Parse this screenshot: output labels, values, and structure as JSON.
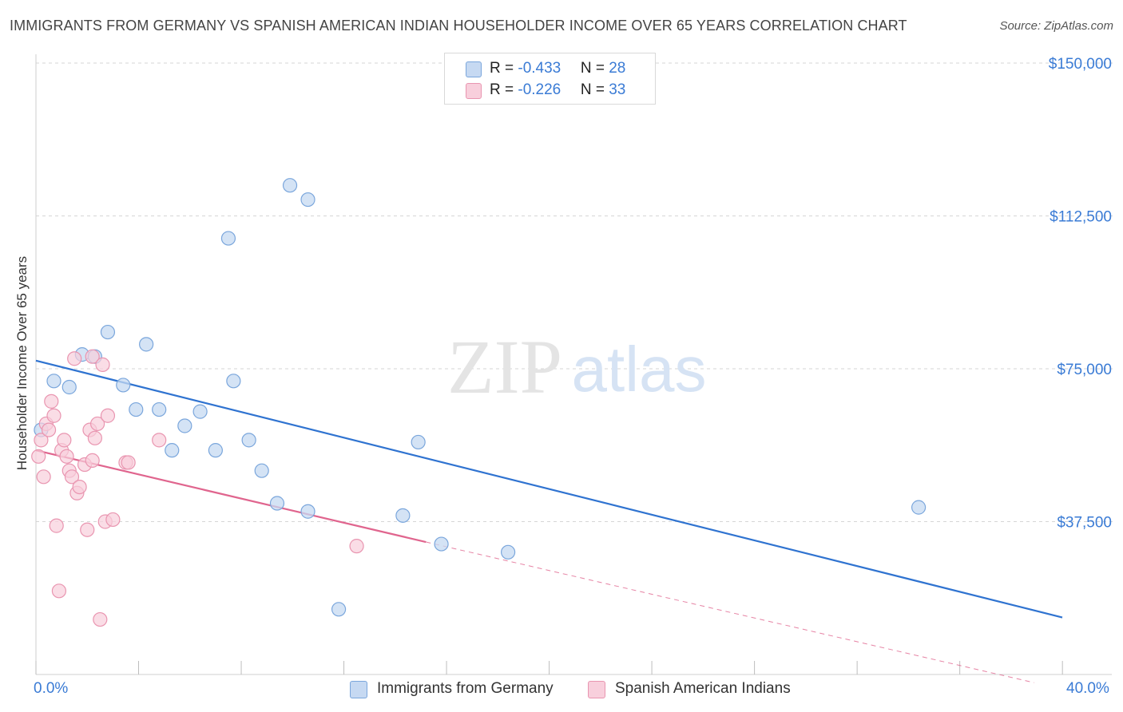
{
  "header": {
    "title": "IMMIGRANTS FROM GERMANY VS SPANISH AMERICAN INDIAN HOUSEHOLDER INCOME OVER 65 YEARS CORRELATION CHART",
    "source": "Source: ZipAtlas.com"
  },
  "watermark": {
    "zip": "ZIP",
    "atlas": "atlas"
  },
  "legend": {
    "rows": [
      {
        "r_label": "R = ",
        "r_value": "-0.433",
        "n_label": "N = ",
        "n_value": "28",
        "color": "#a9c8f0"
      },
      {
        "r_label": "R = ",
        "r_value": "-0.226",
        "n_label": "N = ",
        "n_value": "33",
        "color": "#f5b8cb"
      }
    ]
  },
  "colors": {
    "germany_fill": "#c6d9f2",
    "germany_stroke": "#7aa6dc",
    "germany_line": "#2f73d0",
    "spanish_fill": "#f8cfdc",
    "spanish_stroke": "#e995b0",
    "spanish_line": "#e0658e",
    "tick_label": "#3a7bd5",
    "grid": "#d6d6d6"
  },
  "chart_data": {
    "type": "scatter",
    "title": "IMMIGRANTS FROM GERMANY VS SPANISH AMERICAN INDIAN HOUSEHOLDER INCOME OVER 65 YEARS CORRELATION CHART",
    "xlabel": "",
    "ylabel": "Householder Income Over 65 years",
    "xlim": [
      0,
      40
    ],
    "ylim": [
      0,
      150000
    ],
    "x_tick_labels": [
      "0.0%",
      "40.0%"
    ],
    "y_ticks": [
      37500,
      75000,
      112500,
      150000
    ],
    "y_tick_labels": [
      "$37,500",
      "$75,000",
      "$112,500",
      "$150,000"
    ],
    "grid": true,
    "legend_position": "bottom",
    "series": [
      {
        "name": "Immigrants from Germany",
        "r": -0.433,
        "n": 28,
        "trend": {
          "x": [
            0,
            40
          ],
          "y": [
            77000,
            14000
          ]
        },
        "points": [
          {
            "x": 0.2,
            "y": 60000
          },
          {
            "x": 0.7,
            "y": 72000
          },
          {
            "x": 1.3,
            "y": 70500
          },
          {
            "x": 1.8,
            "y": 78500
          },
          {
            "x": 2.3,
            "y": 78000
          },
          {
            "x": 2.8,
            "y": 84000
          },
          {
            "x": 3.4,
            "y": 71000
          },
          {
            "x": 3.9,
            "y": 65000
          },
          {
            "x": 4.3,
            "y": 81000
          },
          {
            "x": 4.8,
            "y": 65000
          },
          {
            "x": 5.8,
            "y": 61000
          },
          {
            "x": 6.4,
            "y": 64500
          },
          {
            "x": 5.3,
            "y": 55000
          },
          {
            "x": 7.0,
            "y": 55000
          },
          {
            "x": 7.5,
            "y": 107000
          },
          {
            "x": 7.7,
            "y": 72000
          },
          {
            "x": 8.3,
            "y": 57500
          },
          {
            "x": 8.8,
            "y": 50000
          },
          {
            "x": 9.4,
            "y": 42000
          },
          {
            "x": 9.9,
            "y": 120000
          },
          {
            "x": 10.6,
            "y": 116500
          },
          {
            "x": 10.6,
            "y": 40000
          },
          {
            "x": 11.8,
            "y": 16000
          },
          {
            "x": 14.3,
            "y": 39000
          },
          {
            "x": 14.9,
            "y": 57000
          },
          {
            "x": 15.8,
            "y": 32000
          },
          {
            "x": 18.4,
            "y": 30000
          },
          {
            "x": 34.4,
            "y": 41000
          }
        ]
      },
      {
        "name": "Spanish American Indians",
        "r": -0.226,
        "n": 33,
        "trend": {
          "x": [
            0,
            15.2
          ],
          "y": [
            55000,
            32500
          ]
        },
        "trend_dashed": {
          "x": [
            15.2,
            38.9
          ],
          "y": [
            32500,
            -2000
          ]
        },
        "points": [
          {
            "x": 0.1,
            "y": 53500
          },
          {
            "x": 0.2,
            "y": 57500
          },
          {
            "x": 0.3,
            "y": 48500
          },
          {
            "x": 0.4,
            "y": 61500
          },
          {
            "x": 0.5,
            "y": 60000
          },
          {
            "x": 0.6,
            "y": 67000
          },
          {
            "x": 0.7,
            "y": 63500
          },
          {
            "x": 0.8,
            "y": 36500
          },
          {
            "x": 0.9,
            "y": 20500
          },
          {
            "x": 1.0,
            "y": 55000
          },
          {
            "x": 1.1,
            "y": 57500
          },
          {
            "x": 1.2,
            "y": 53500
          },
          {
            "x": 1.3,
            "y": 50000
          },
          {
            "x": 1.4,
            "y": 48500
          },
          {
            "x": 1.5,
            "y": 77500
          },
          {
            "x": 1.6,
            "y": 44500
          },
          {
            "x": 1.7,
            "y": 46000
          },
          {
            "x": 1.9,
            "y": 51500
          },
          {
            "x": 2.0,
            "y": 35500
          },
          {
            "x": 2.1,
            "y": 60000
          },
          {
            "x": 2.2,
            "y": 52500
          },
          {
            "x": 2.2,
            "y": 78000
          },
          {
            "x": 2.3,
            "y": 58000
          },
          {
            "x": 2.4,
            "y": 61500
          },
          {
            "x": 2.5,
            "y": 13500
          },
          {
            "x": 2.6,
            "y": 76000
          },
          {
            "x": 2.7,
            "y": 37500
          },
          {
            "x": 2.8,
            "y": 63500
          },
          {
            "x": 3.0,
            "y": 38000
          },
          {
            "x": 3.5,
            "y": 52000
          },
          {
            "x": 3.6,
            "y": 52000
          },
          {
            "x": 4.8,
            "y": 57500
          },
          {
            "x": 12.5,
            "y": 31500
          }
        ]
      }
    ]
  }
}
